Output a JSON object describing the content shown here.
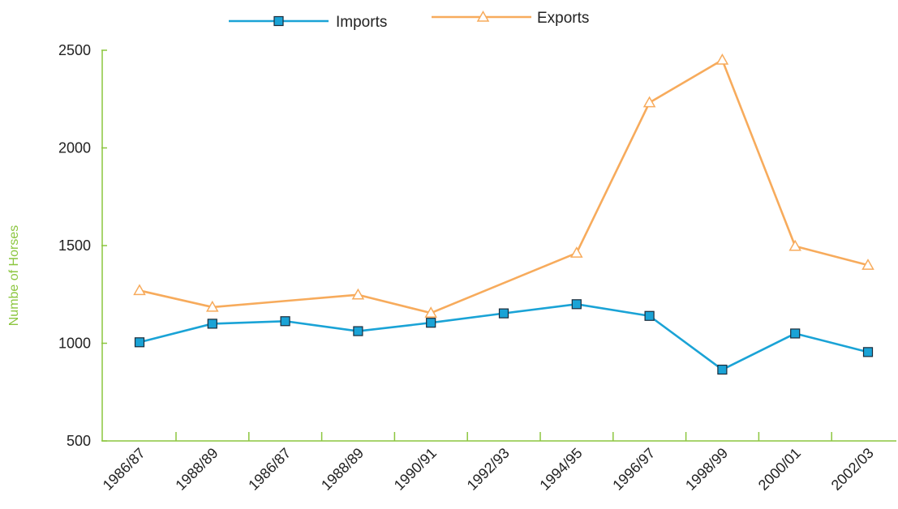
{
  "chart_data": {
    "type": "line",
    "categories": [
      "1986/87",
      "1988/89",
      "1986/87",
      "1988/89",
      "1990/91",
      "1992/93",
      "1994/95",
      "1996/97",
      "1998/99",
      "2000/01",
      "2002/03"
    ],
    "series": [
      {
        "name": "Imports",
        "color": "#1aa3d6",
        "marker": "square",
        "values": [
          1005,
          1100,
          1113,
          1062,
          1105,
          1153,
          1200,
          1140,
          865,
          1050,
          955
        ]
      },
      {
        "name": "Exports",
        "color": "#f7ab5c",
        "marker": "triangle",
        "values": [
          1270,
          1185,
          null,
          1248,
          1155,
          null,
          1462,
          2232,
          2450,
          1497,
          1400
        ]
      }
    ],
    "title": "",
    "xlabel": "",
    "ylabel": "Numbe of Horses",
    "ylim": [
      500,
      2500
    ],
    "yticks": [
      500,
      1000,
      1500,
      2000,
      2500
    ],
    "axis_color": "#8cc63f",
    "grid": false,
    "legend_position": "top-center"
  }
}
